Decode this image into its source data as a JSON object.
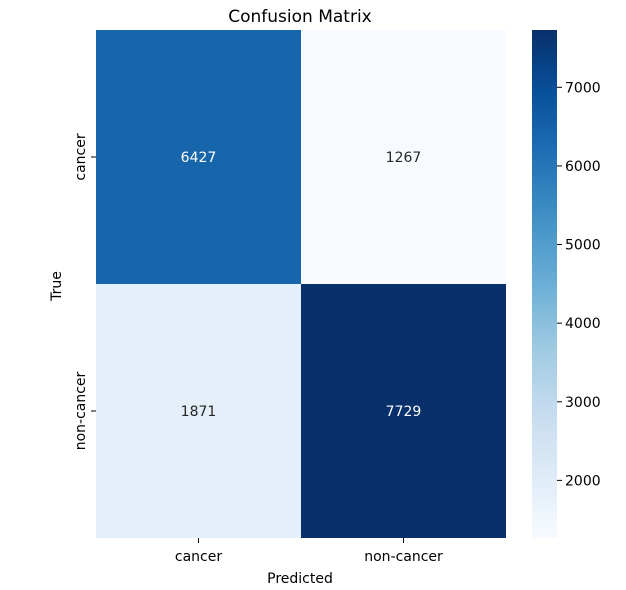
{
  "chart_data": {
    "type": "heatmap",
    "title": "Confusion Matrix",
    "xlabel": "Predicted",
    "ylabel": "True",
    "x_categories": [
      "cancer",
      "non-cancer"
    ],
    "y_categories": [
      "cancer",
      "non-cancer"
    ],
    "values": [
      [
        6427,
        1267
      ],
      [
        1871,
        7729
      ]
    ],
    "colormap": "Blues",
    "colorbar": {
      "range": [
        1267,
        7729
      ],
      "ticks": [
        2000,
        3000,
        4000,
        5000,
        6000,
        7000
      ]
    }
  }
}
